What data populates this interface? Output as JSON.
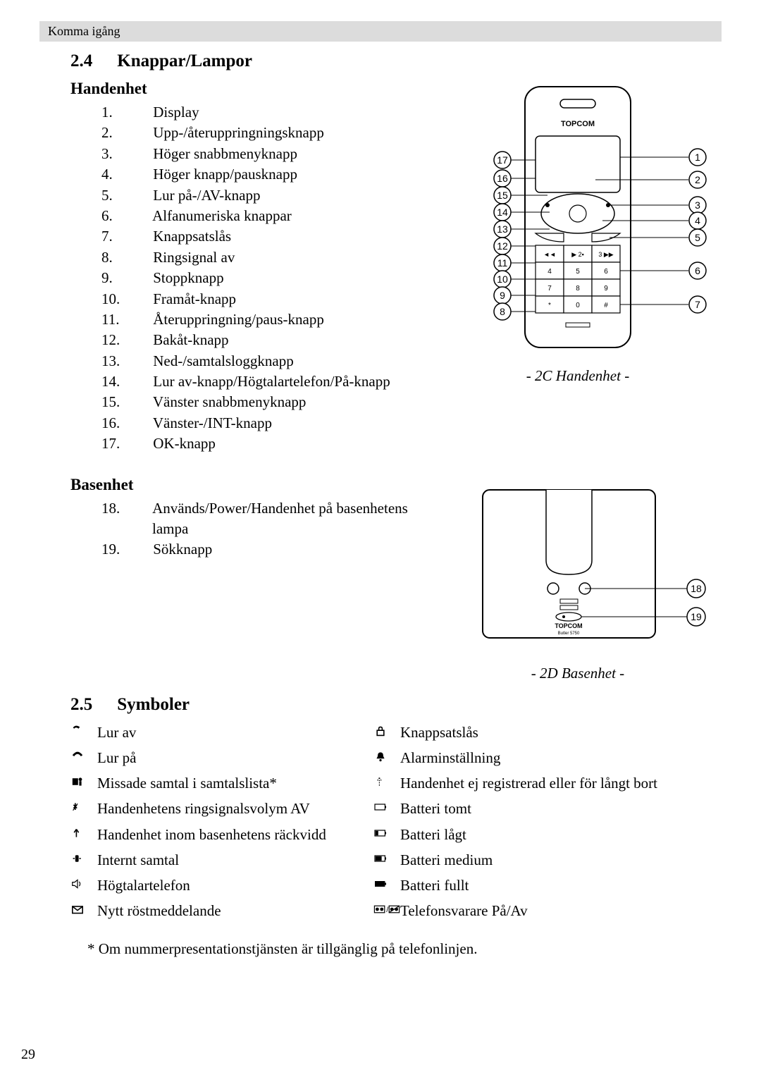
{
  "header": {
    "text": "Komma igång"
  },
  "section1": {
    "number": "2.4",
    "title": "Knappar/Lampor",
    "sub1": {
      "heading": "Handenhet",
      "items": [
        "Display",
        "Upp-/återuppringningsknapp",
        "Höger snabbmenyknapp",
        "Höger knapp/pausknapp",
        "Lur på-/AV-knapp",
        "Alfanumeriska knappar",
        "Knappsatslås",
        "Ringsignal av",
        "Stoppknapp",
        "Framåt-knapp",
        "Återuppringning/paus-knapp",
        "Bakåt-knapp",
        "Ned-/samtalsloggknapp",
        "Lur av-knapp/Högtalartelefon/På-knapp",
        "Vänster snabbmenyknapp",
        "Vänster-/INT-knapp",
        "OK-knapp"
      ],
      "caption": "- 2C Handenhet -"
    },
    "sub2": {
      "heading": "Basenhet",
      "start": 18,
      "items": [
        "Används/Power/Handenhet på basenhetens lampa",
        "Sökknapp"
      ],
      "caption": "- 2D Basenhet -"
    }
  },
  "section2": {
    "number": "2.5",
    "title": "Symboler",
    "left": [
      {
        "label": "Lur av"
      },
      {
        "label": "Lur på"
      },
      {
        "label": "Missade samtal i samtalslista*"
      },
      {
        "label": "Handenhetens ringsignalsvolym AV"
      },
      {
        "label": "Handenhet inom basenhetens räckvidd"
      },
      {
        "label": "Internt samtal"
      },
      {
        "label": "Högtalartelefon"
      },
      {
        "label": "Nytt röstmeddelande"
      }
    ],
    "right": [
      {
        "label": "Knappsatslås"
      },
      {
        "label": "Alarminställning"
      },
      {
        "label": "Handenhet ej registrerad eller för långt bort"
      },
      {
        "label": "Batteri tomt"
      },
      {
        "label": "Batteri lågt"
      },
      {
        "label": "Batteri medium"
      },
      {
        "label": "Batteri fullt"
      },
      {
        "label": "Telefonsvarare På/Av"
      }
    ],
    "footnote": "* Om nummerpresentationstjänsten är tillgänglig på telefonlinjen."
  },
  "pagenum": "29",
  "handset_diagram": {
    "brand": "TOPCOM",
    "right_callouts": [
      1,
      2,
      3,
      4,
      5,
      6,
      7
    ],
    "left_callouts": [
      17,
      16,
      15,
      14,
      13,
      12,
      11,
      10,
      9,
      8
    ],
    "colors": {
      "line": "#000000",
      "fill": "#ffffff"
    }
  },
  "base_diagram": {
    "brand_top": "TOPCOM",
    "brand_sub": "Butler 5750",
    "callouts": [
      18,
      19
    ],
    "colors": {
      "line": "#000000",
      "fill": "#ffffff"
    }
  },
  "battery_levels": [
    "empty",
    "low",
    "medium",
    "full"
  ]
}
